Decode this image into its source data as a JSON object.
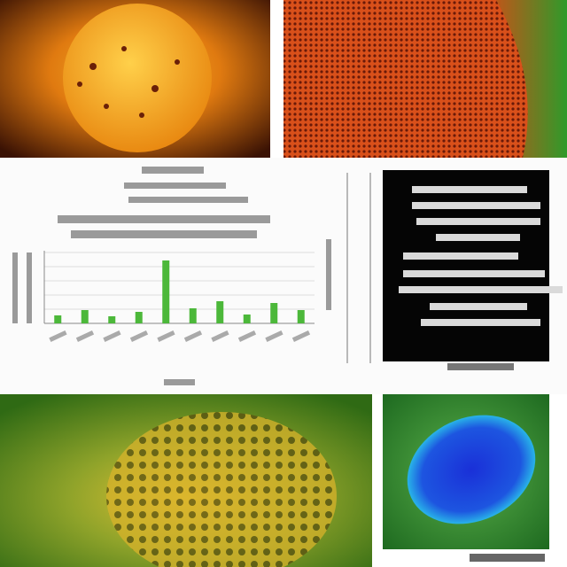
{
  "chart_data": {
    "type": "bar",
    "categories": [
      null,
      null,
      null,
      null,
      null,
      null,
      null,
      null,
      null,
      null
    ],
    "values": [
      9,
      15,
      8,
      13,
      71,
      17,
      25,
      10,
      23,
      15
    ],
    "color": "#4cb83a",
    "ylim": [
      0,
      80
    ]
  }
}
